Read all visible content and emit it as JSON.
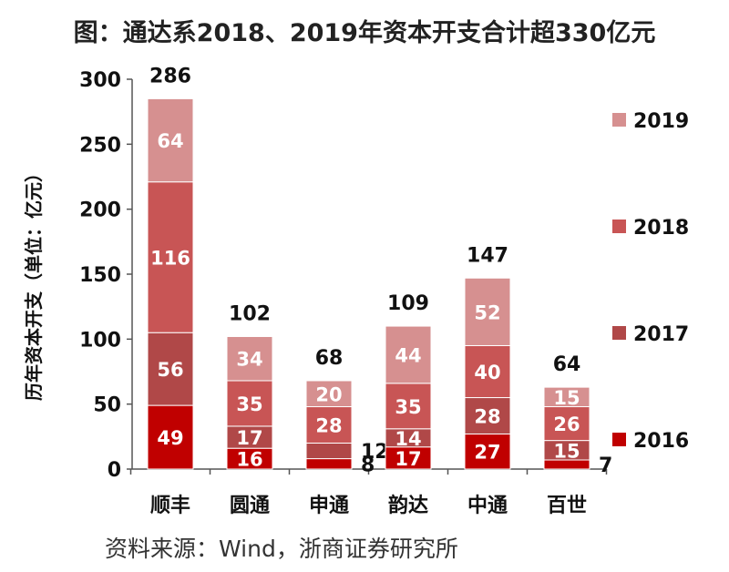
{
  "chart_data": {
    "type": "bar",
    "stacked": true,
    "title": "图：通达系2018、2019年资本开支合计超330亿元",
    "ylabel": "历年资本开支（单位：亿元）",
    "xlabel": "",
    "ylim": [
      0,
      300
    ],
    "yticks": [
      0,
      50,
      100,
      150,
      200,
      250,
      300
    ],
    "categories": [
      "顺丰",
      "圆通",
      "申通",
      "韵达",
      "中通",
      "百世"
    ],
    "series": [
      {
        "name": "2016",
        "color": "#c00000",
        "values": [
          49,
          16,
          8,
          17,
          27,
          7
        ]
      },
      {
        "name": "2017",
        "color": "#b04848",
        "values": [
          56,
          17,
          12,
          14,
          28,
          15
        ]
      },
      {
        "name": "2018",
        "color": "#c85555",
        "values": [
          116,
          35,
          28,
          35,
          40,
          26
        ]
      },
      {
        "name": "2019",
        "color": "#d69090",
        "values": [
          64,
          34,
          20,
          44,
          52,
          15
        ]
      }
    ],
    "totals": [
      286,
      102,
      68,
      109,
      147,
      64
    ],
    "legend_position": "right",
    "grid": false
  },
  "source": "资料来源：Wind，浙商证券研究所"
}
